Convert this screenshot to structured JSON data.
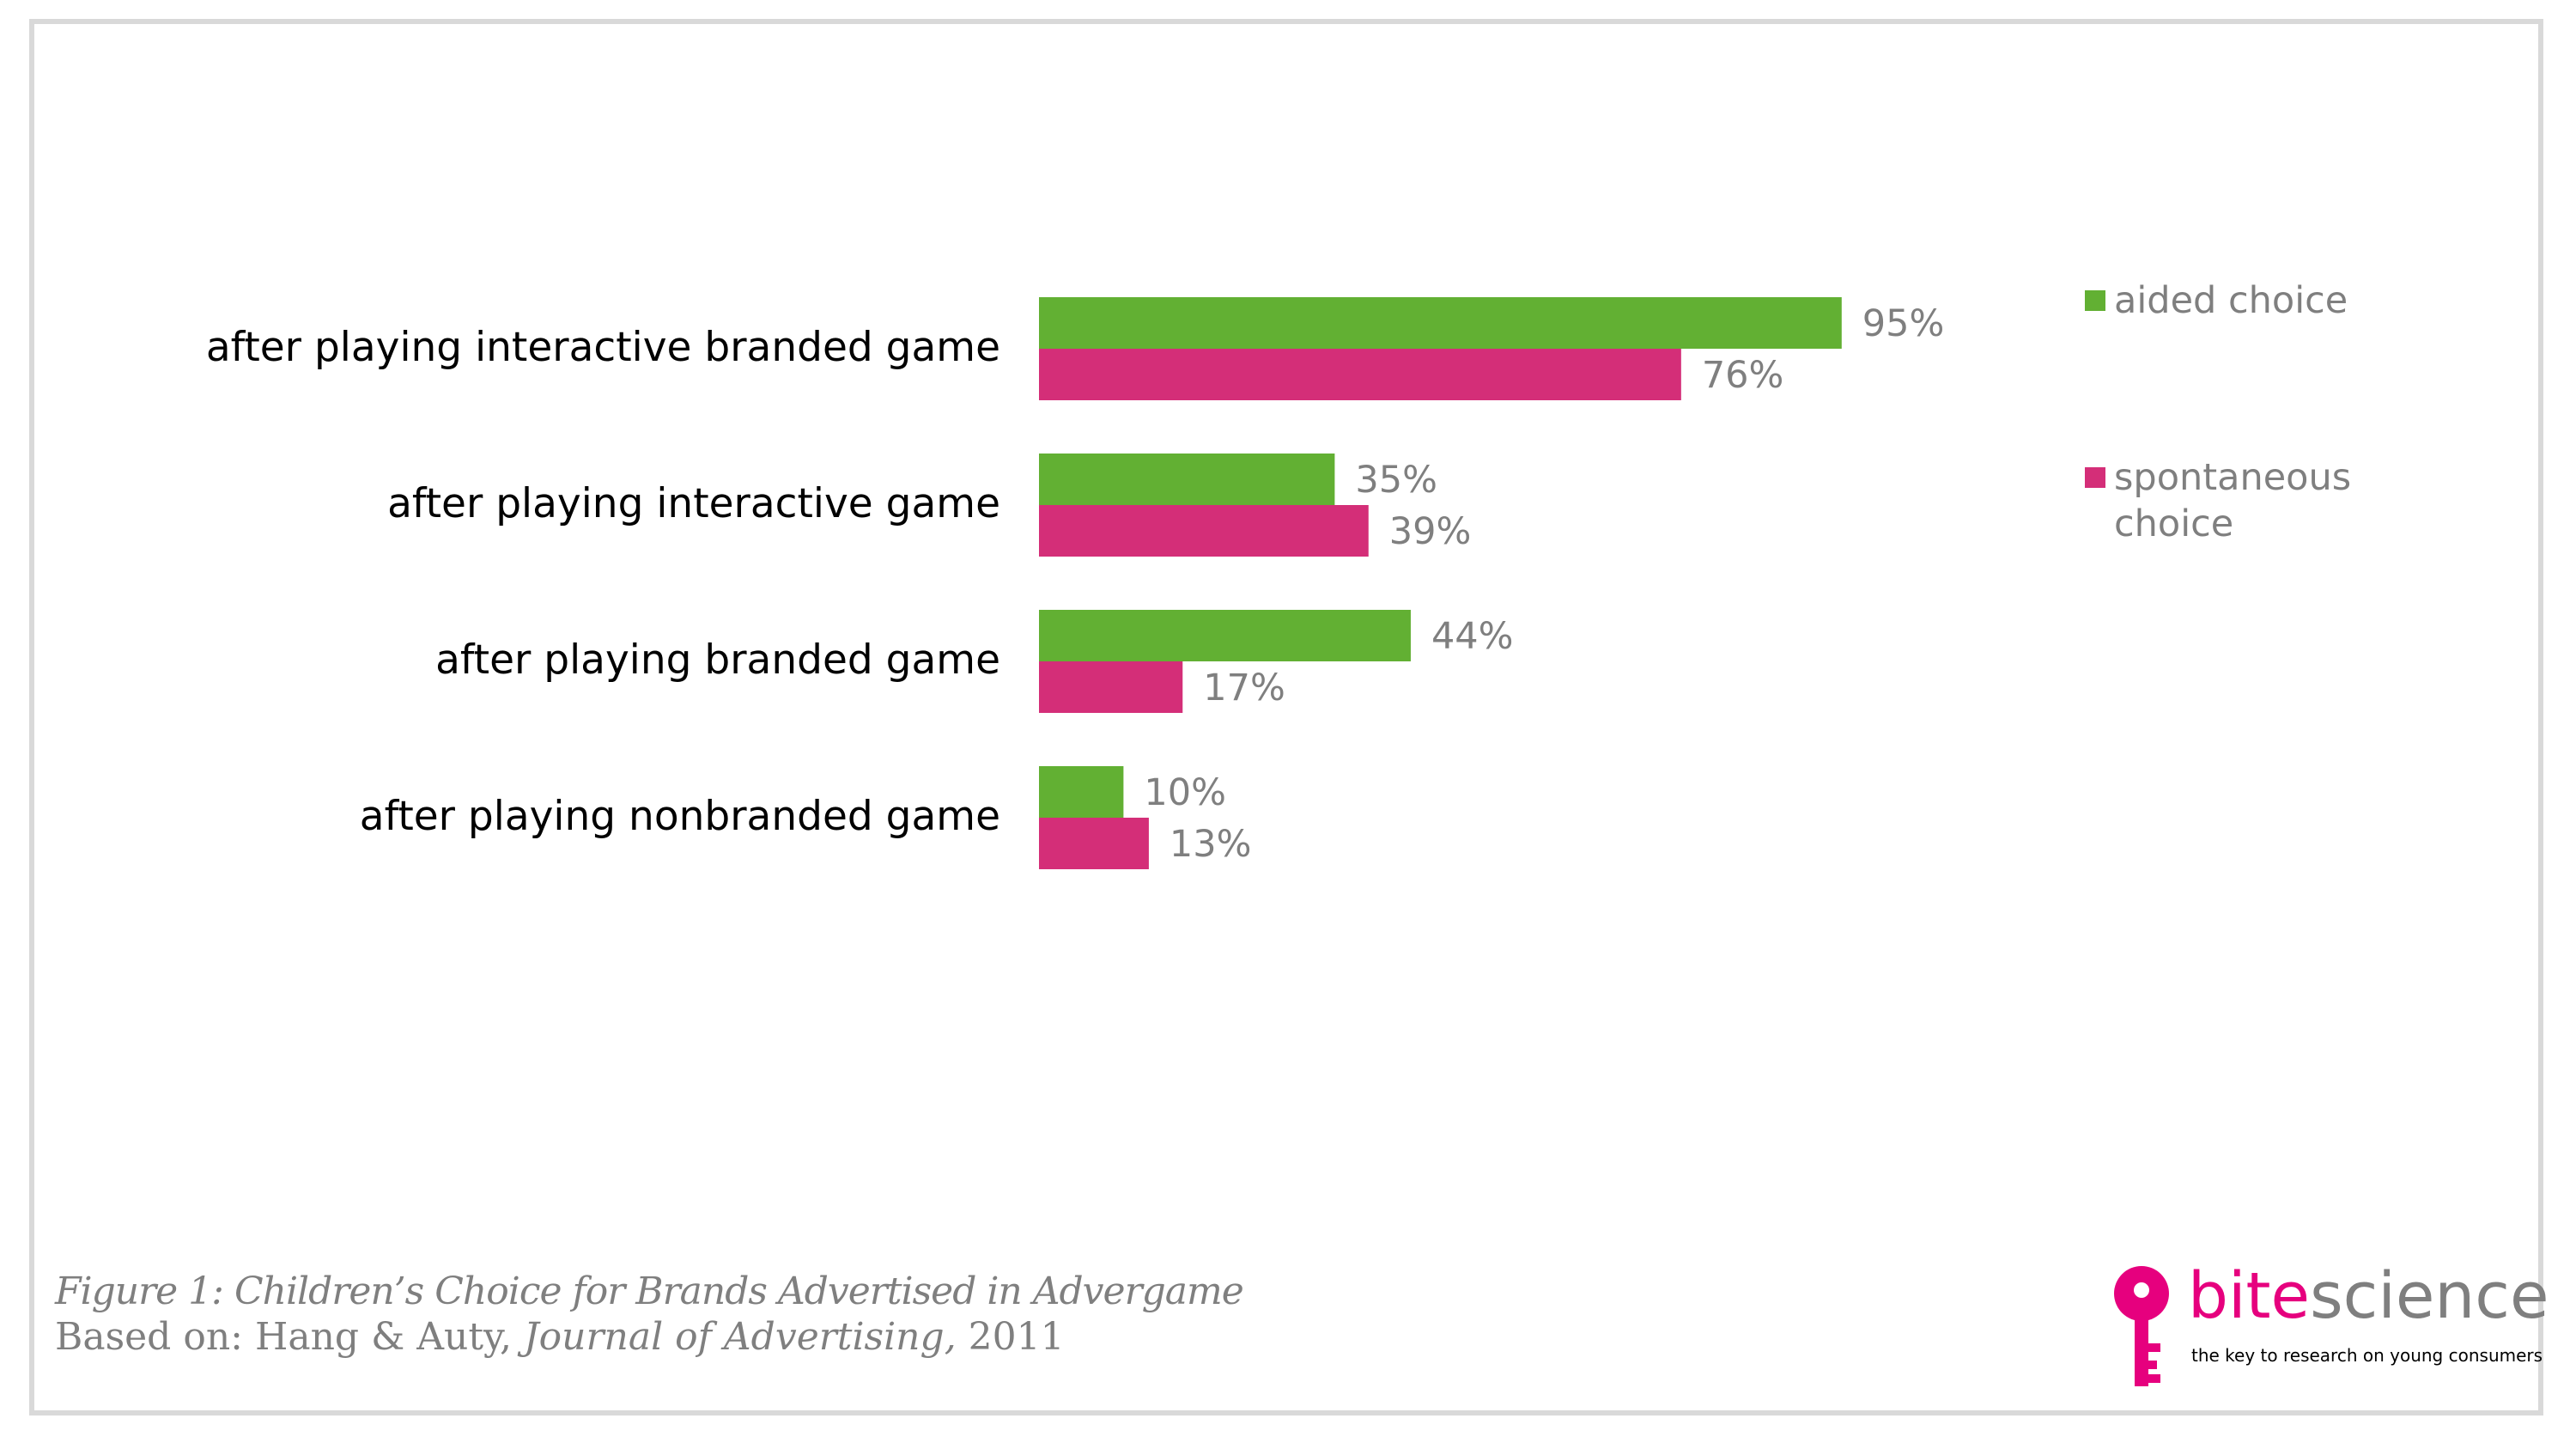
{
  "chart_data": {
    "type": "bar",
    "orientation": "horizontal",
    "categories": [
      "after playing interactive branded game",
      "after playing interactive  game",
      "after playing branded game",
      "after playing nonbranded game"
    ],
    "series": [
      {
        "name": "aided choice",
        "values": [
          95,
          35,
          44,
          10
        ],
        "color": "#62b033"
      },
      {
        "name": "spontaneous choice",
        "values": [
          76,
          39,
          17,
          13
        ],
        "color": "#d42e78"
      }
    ],
    "value_suffix": "%",
    "xlim": [
      0,
      100
    ],
    "grid": false,
    "legend_position": "top-right"
  },
  "legend": {
    "items": [
      {
        "lines": [
          "aided choice"
        ],
        "color": "#62b033"
      },
      {
        "lines": [
          "spontaneous",
          "choice"
        ],
        "color": "#d42e78"
      }
    ]
  },
  "caption": {
    "figure": "Figure 1: Children’s Choice for Brands Advertised in Advergame",
    "source_prefix": "Based on: Hang & Auty, ",
    "source_journal": "Journal of Advertising,",
    "source_year": " 2011"
  },
  "logo": {
    "word_part1": "bite",
    "word_part2": "science",
    "tagline": "the key to research on young consumers",
    "key_color": "#e6007e",
    "icon": "key-icon"
  }
}
